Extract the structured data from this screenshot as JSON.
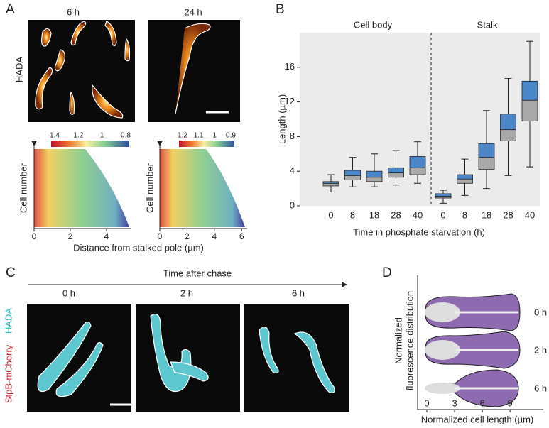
{
  "panel_a": {
    "label": "A",
    "times": [
      "6 h",
      "24 h"
    ],
    "channel": "HADA",
    "colorbars": [
      [
        1.4,
        1.2,
        1,
        0.8
      ],
      [
        1.2,
        1.1,
        1,
        0.9
      ]
    ],
    "y_label": "Cell number",
    "x_ticks": [
      [
        0,
        2,
        4
      ],
      [
        0,
        2,
        4,
        6
      ]
    ],
    "x_label": "Distance from stalked pole (µm)"
  },
  "chart_data": {
    "type": "box",
    "label": "B",
    "y_label": "Length (µm)",
    "x_label": "Time in phosphate starvation (h)",
    "categories": [
      "0",
      "8",
      "18",
      "28",
      "40"
    ],
    "ylim": [
      0,
      20
    ],
    "yticks": [
      0,
      4,
      8,
      12,
      16
    ],
    "colors": {
      "upper": "#4a86c8",
      "lower": "#a9a9a9"
    },
    "series": [
      {
        "name": "Cell body",
        "whisker_low": [
          1.6,
          2.2,
          2.2,
          2.4,
          2.6
        ],
        "q1": [
          2.3,
          3.0,
          2.8,
          3.3,
          3.6
        ],
        "median": [
          2.6,
          3.5,
          3.3,
          3.8,
          4.4
        ],
        "q3": [
          2.8,
          4.1,
          4.0,
          4.4,
          5.7
        ],
        "whisker_high": [
          3.6,
          5.6,
          6.0,
          6.4,
          7.4
        ]
      },
      {
        "name": "Stalk",
        "whisker_low": [
          0.3,
          1.2,
          2.0,
          3.5,
          4.5
        ],
        "q1": [
          0.9,
          2.6,
          4.2,
          7.5,
          9.8
        ],
        "median": [
          1.1,
          3.1,
          5.6,
          8.8,
          12.2
        ],
        "q3": [
          1.4,
          3.6,
          7.2,
          10.6,
          14.4
        ],
        "whisker_high": [
          1.8,
          5.4,
          11,
          14.7,
          19
        ]
      }
    ]
  },
  "panel_c": {
    "label": "C",
    "axis_title": "Time after chase",
    "times": [
      "0 h",
      "2 h",
      "6 h"
    ],
    "channels": [
      "HADA",
      "StpB-mCherry"
    ]
  },
  "panel_d": {
    "label": "D",
    "rows": [
      "0 h",
      "2 h",
      "6 h"
    ],
    "y_label": [
      "Normalized",
      "fluorescence distribution"
    ],
    "x_label": "Normalized cell length (µm)",
    "xlim": [
      -1,
      12.6
    ],
    "xticks": [
      0,
      3,
      6,
      9
    ]
  }
}
